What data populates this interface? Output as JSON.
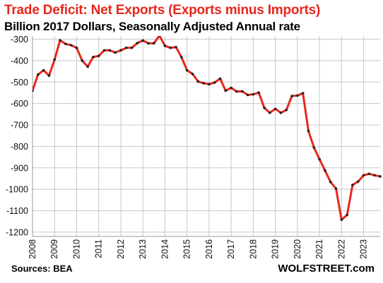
{
  "chart_data": {
    "type": "line",
    "title": "Trade Deficit: Net Exports (Exports minus Imports)",
    "subtitle": "Billion 2017 Dollars, Seasonally Adjusted Annual rate",
    "xlabel": "",
    "ylabel": "",
    "ylim": [
      -1220,
      -285
    ],
    "yticks": [
      -300,
      -400,
      -500,
      -600,
      -700,
      -800,
      -900,
      -1000,
      -1100,
      -1200
    ],
    "yticklabels": [
      "-300",
      "-400",
      "-500",
      "-600",
      "-700",
      "-800",
      "-900",
      "-1000",
      "-1100",
      "-1200"
    ],
    "xlim": [
      2008.0,
      2023.75
    ],
    "xticks": [
      2008,
      2009,
      2010,
      2011,
      2012,
      2013,
      2014,
      2015,
      2016,
      2017,
      2018,
      2019,
      2020,
      2021,
      2022,
      2023
    ],
    "xticklabels": [
      "2008",
      "2009",
      "2010",
      "2011",
      "2012",
      "2013",
      "2014",
      "2015",
      "2016",
      "2017",
      "2018",
      "2019",
      "2020",
      "2021",
      "2022",
      "2023"
    ],
    "grid": true,
    "line_color": "#e8261c",
    "marker_color": "#222222",
    "series": [
      {
        "name": "",
        "x": [
          2008.0,
          2008.25,
          2008.5,
          2008.75,
          2009.0,
          2009.25,
          2009.5,
          2009.75,
          2010.0,
          2010.25,
          2010.5,
          2010.75,
          2011.0,
          2011.25,
          2011.5,
          2011.75,
          2012.0,
          2012.25,
          2012.5,
          2012.75,
          2013.0,
          2013.25,
          2013.5,
          2013.75,
          2014.0,
          2014.25,
          2014.5,
          2014.75,
          2015.0,
          2015.25,
          2015.5,
          2015.75,
          2016.0,
          2016.25,
          2016.5,
          2016.75,
          2017.0,
          2017.25,
          2017.5,
          2017.75,
          2018.0,
          2018.25,
          2018.5,
          2018.75,
          2019.0,
          2019.25,
          2019.5,
          2019.75,
          2020.0,
          2020.25,
          2020.5,
          2020.75,
          2021.0,
          2021.25,
          2021.5,
          2021.75,
          2022.0,
          2022.25,
          2022.5,
          2022.75,
          2023.0,
          2023.25,
          2023.5,
          2023.75
        ],
        "values": [
          -540,
          -465,
          -445,
          -470,
          -395,
          -305,
          -322,
          -328,
          -340,
          -400,
          -428,
          -383,
          -378,
          -352,
          -352,
          -362,
          -352,
          -340,
          -340,
          -318,
          -306,
          -319,
          -319,
          -283,
          -331,
          -340,
          -337,
          -384,
          -445,
          -462,
          -497,
          -505,
          -510,
          -502,
          -484,
          -540,
          -527,
          -544,
          -543,
          -560,
          -557,
          -549,
          -620,
          -643,
          -625,
          -643,
          -630,
          -565,
          -563,
          -552,
          -728,
          -805,
          -860,
          -912,
          -966,
          -997,
          -1142,
          -1120,
          -980,
          -964,
          -935,
          -928,
          -935,
          -940
        ]
      }
    ]
  },
  "footer": {
    "source": "Sources: BEA",
    "brand": "WOLFSTREET.com"
  }
}
